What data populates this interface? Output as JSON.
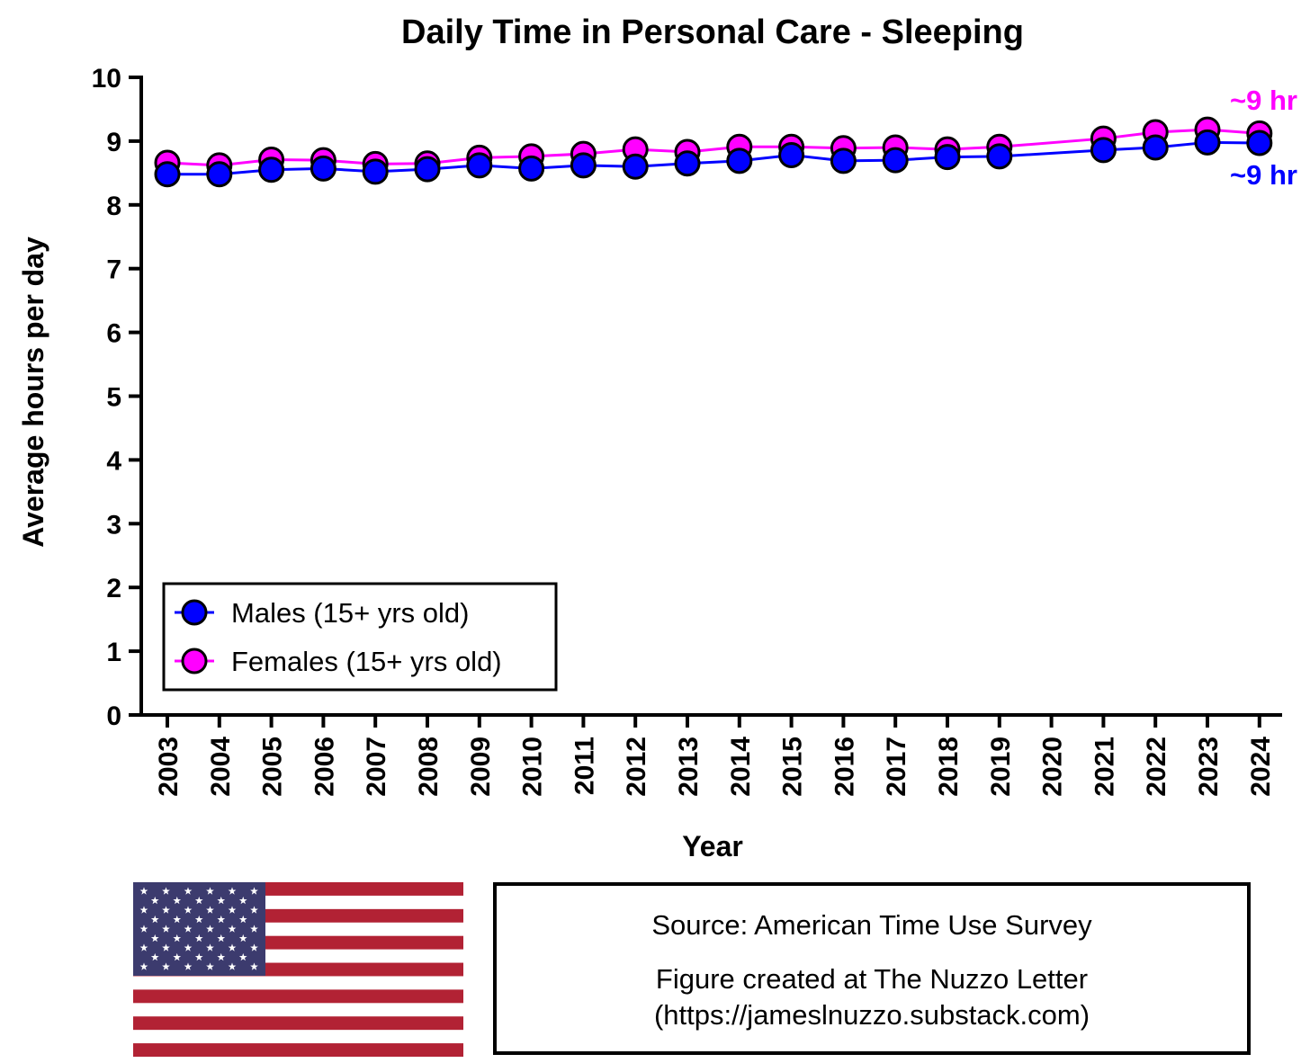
{
  "chart_data": {
    "type": "line",
    "title": "Daily Time in Personal Care - Sleeping",
    "xlabel": "Year",
    "ylabel": "Average hours per day",
    "ylim": [
      0,
      10
    ],
    "yticks": [
      "0",
      "1",
      "2",
      "3",
      "4",
      "5",
      "6",
      "7",
      "8",
      "9",
      "10"
    ],
    "categories": [
      "2003",
      "2004",
      "2005",
      "2006",
      "2007",
      "2008",
      "2009",
      "2010",
      "2011",
      "2012",
      "2013",
      "2014",
      "2015",
      "2016",
      "2017",
      "2018",
      "2019",
      "2020",
      "2021",
      "2022",
      "2023",
      "2024"
    ],
    "grid": false,
    "legend_position": "bottom-left",
    "series": [
      {
        "name": "Males (15+ yrs old)",
        "color": "#0000ff",
        "values": [
          8.48,
          8.48,
          8.55,
          8.57,
          8.52,
          8.56,
          8.62,
          8.57,
          8.62,
          8.6,
          8.65,
          8.69,
          8.78,
          8.69,
          8.7,
          8.75,
          8.76,
          null,
          8.86,
          8.9,
          8.98,
          8.97
        ],
        "end_label": "~9 hr"
      },
      {
        "name": "Females (15+ yrs old)",
        "color": "#ff00ff",
        "values": [
          8.66,
          8.62,
          8.71,
          8.7,
          8.64,
          8.65,
          8.74,
          8.76,
          8.8,
          8.87,
          8.83,
          8.91,
          8.91,
          8.89,
          8.9,
          8.87,
          8.91,
          null,
          9.04,
          9.14,
          9.18,
          9.12
        ],
        "end_label": "~9 hr"
      }
    ]
  },
  "source": {
    "line1": "Source: American Time Use Survey",
    "line2": "Figure created at The Nuzzo Letter",
    "line3": "(https://jameslnuzzo.substack.com)"
  },
  "flag_icon": "us-flag-icon",
  "colors": {
    "flag_red": "#b22234",
    "flag_blue": "#3c3b6e",
    "flag_white": "#ffffff"
  }
}
